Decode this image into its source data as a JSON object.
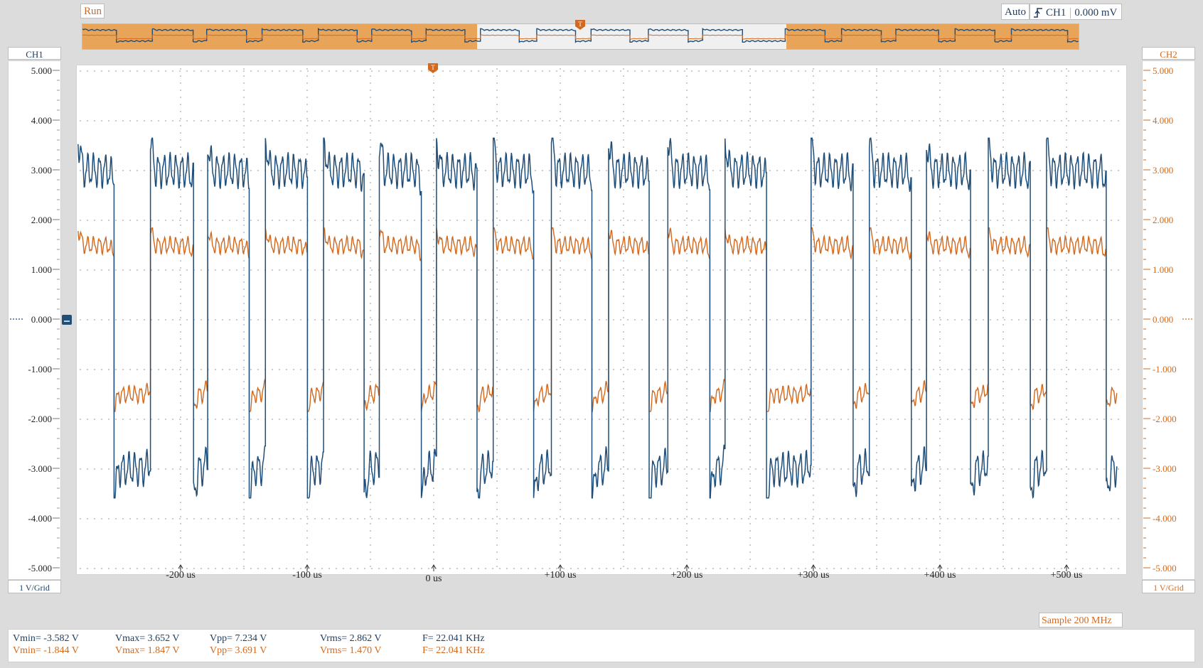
{
  "toolbar": {
    "run_label": "Run",
    "auto_label": "Auto",
    "trigger_source": "CH1",
    "trigger_level": "0.000 mV"
  },
  "channels": {
    "ch1": {
      "label": "CH1",
      "scale": "1 V/Grid",
      "color": "#1f4e79"
    },
    "ch2": {
      "label": "CH2",
      "scale": "1 V/Grid",
      "color": "#d2691e"
    }
  },
  "axes": {
    "y_ticks": [
      "5.000",
      "4.000",
      "3.000",
      "2.000",
      "1.000",
      "0.000",
      "-1.000",
      "-2.000",
      "-3.000",
      "-4.000",
      "-5.000"
    ],
    "x_ticks": [
      "-200 us",
      "-100 us",
      "0 us",
      "+100 us",
      "+200 us",
      "+300 us",
      "+400 us",
      "+500 us"
    ]
  },
  "status": {
    "sample_rate": "Sample 200 MHz"
  },
  "measurements": {
    "ch1": {
      "vmin": "Vmin= -3.582 V",
      "vmax": "Vmax= 3.652 V",
      "vpp": "Vpp= 7.234 V",
      "vrms": "Vrms= 2.862 V",
      "freq": "F= 22.041 KHz"
    },
    "ch2": {
      "vmin": "Vmin= -1.844 V",
      "vmax": "Vmax= 1.847 V",
      "vpp": "Vpp= 3.691 V",
      "vrms": "Vrms= 1.470 V",
      "freq": "F= 22.041 KHz"
    }
  },
  "chart_data": {
    "type": "line",
    "x_unit": "us",
    "xlim": [
      -281,
      540
    ],
    "ylim": [
      -5,
      5
    ],
    "grid": true,
    "frequency_khz": 22.041,
    "series": [
      {
        "name": "CH1",
        "color": "#1f4e79",
        "min": -3.582,
        "max": 3.652,
        "high_level": 3.0,
        "low_level": -3.0,
        "ripple": 0.28
      },
      {
        "name": "CH2",
        "color": "#d2691e",
        "min": -1.844,
        "max": 1.847,
        "high_level": 1.5,
        "low_level": -1.5,
        "ripple": 0.14
      }
    ],
    "pulses_us": [
      [
        -281,
        -253
      ],
      [
        -224,
        -190
      ],
      [
        -179,
        -146
      ],
      [
        -133,
        -100
      ],
      [
        -87,
        -55
      ],
      [
        -43,
        -10
      ],
      [
        2,
        34
      ],
      [
        47,
        79
      ],
      [
        93,
        125
      ],
      [
        138,
        170
      ],
      [
        185,
        218
      ],
      [
        230,
        263
      ],
      [
        298,
        331
      ],
      [
        344,
        377
      ],
      [
        389,
        424
      ],
      [
        438,
        471
      ],
      [
        484,
        531
      ]
    ]
  }
}
